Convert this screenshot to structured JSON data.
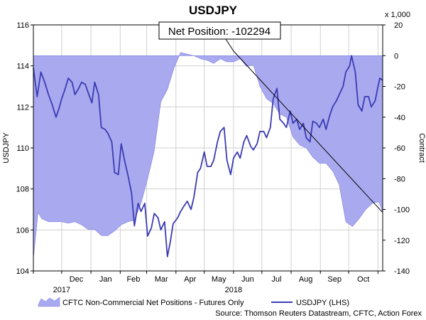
{
  "chart_data": {
    "type": "line",
    "title": "USDJPY",
    "left_axis": {
      "label": "USDJPY",
      "range": [
        104,
        116
      ],
      "ticks": [
        104,
        106,
        108,
        110,
        112,
        114,
        116
      ]
    },
    "right_axis": {
      "label": "Contract",
      "unit": "x 1,000",
      "range": [
        -140,
        20
      ],
      "ticks": [
        -140,
        -120,
        -100,
        -80,
        -60,
        -40,
        -20,
        0,
        20
      ]
    },
    "x_ticks": [
      "Dec",
      "Jan",
      "Feb",
      "Mar",
      "Apr",
      "May",
      "Jun",
      "Jul",
      "Aug",
      "Sep",
      "Oct"
    ],
    "year_labels": [
      {
        "text": "2017",
        "at": "Dec"
      },
      {
        "text": "2018",
        "at": "Jun"
      }
    ],
    "x_domain": [
      "2017-11-01",
      "2018-11-06"
    ],
    "grid": true,
    "annotation": {
      "text": "Net Position: -102294",
      "value": -102294
    },
    "colors": {
      "area_fill": "#a9a9ef",
      "area_edge": "#7f7fdf",
      "line": "#3b3bb3",
      "grid": "#d0d0d0",
      "trend": "#000000"
    },
    "series": [
      {
        "name": "CFTC Non-Commercial Net Positions - Futures Only",
        "axis": "right",
        "kind": "area",
        "points": [
          [
            "2017-11-01",
            -132
          ],
          [
            "2017-11-06",
            -102
          ],
          [
            "2017-11-10",
            -106
          ],
          [
            "2017-11-17",
            -108
          ],
          [
            "2017-11-24",
            -108
          ],
          [
            "2017-12-01",
            -108
          ],
          [
            "2017-12-08",
            -109
          ],
          [
            "2017-12-15",
            -108
          ],
          [
            "2017-12-22",
            -110
          ],
          [
            "2017-12-29",
            -113
          ],
          [
            "2018-01-05",
            -113
          ],
          [
            "2018-01-12",
            -117
          ],
          [
            "2018-01-19",
            -117
          ],
          [
            "2018-01-26",
            -114
          ],
          [
            "2018-02-02",
            -110
          ],
          [
            "2018-02-09",
            -108
          ],
          [
            "2018-02-16",
            -107
          ],
          [
            "2018-02-23",
            -96
          ],
          [
            "2018-03-02",
            -80
          ],
          [
            "2018-03-09",
            -62
          ],
          [
            "2018-03-16",
            -30
          ],
          [
            "2018-03-23",
            -22
          ],
          [
            "2018-03-30",
            -8
          ],
          [
            "2018-04-06",
            2
          ],
          [
            "2018-04-13",
            1
          ],
          [
            "2018-04-20",
            0
          ],
          [
            "2018-04-27",
            -2
          ],
          [
            "2018-05-04",
            -3
          ],
          [
            "2018-05-11",
            -5
          ],
          [
            "2018-05-18",
            -2
          ],
          [
            "2018-05-25",
            -4
          ],
          [
            "2018-06-01",
            -4
          ],
          [
            "2018-06-08",
            -2
          ],
          [
            "2018-06-15",
            -7
          ],
          [
            "2018-06-22",
            -6
          ],
          [
            "2018-06-29",
            -20
          ],
          [
            "2018-07-06",
            -28
          ],
          [
            "2018-07-13",
            -31
          ],
          [
            "2018-07-20",
            -38
          ],
          [
            "2018-07-27",
            -40
          ],
          [
            "2018-08-03",
            -53
          ],
          [
            "2018-08-10",
            -58
          ],
          [
            "2018-08-17",
            -60
          ],
          [
            "2018-08-24",
            -66
          ],
          [
            "2018-08-31",
            -70
          ],
          [
            "2018-09-07",
            -70
          ],
          [
            "2018-09-14",
            -75
          ],
          [
            "2018-09-21",
            -84
          ],
          [
            "2018-09-28",
            -108
          ],
          [
            "2018-10-05",
            -111
          ],
          [
            "2018-10-12",
            -106
          ],
          [
            "2018-10-19",
            -100
          ],
          [
            "2018-10-26",
            -96
          ],
          [
            "2018-11-02",
            -95
          ],
          [
            "2018-11-06",
            -102
          ]
        ]
      },
      {
        "name": "USDJPY (LHS)",
        "axis": "left",
        "kind": "line",
        "points": [
          [
            "2017-11-01",
            113.9
          ],
          [
            "2017-11-05",
            112.5
          ],
          [
            "2017-11-09",
            113.7
          ],
          [
            "2017-11-13",
            113.2
          ],
          [
            "2017-11-17",
            112.6
          ],
          [
            "2017-11-21",
            112.1
          ],
          [
            "2017-11-25",
            111.5
          ],
          [
            "2017-11-28",
            111.9
          ],
          [
            "2017-12-01",
            112.4
          ],
          [
            "2017-12-04",
            112.8
          ],
          [
            "2017-12-08",
            113.4
          ],
          [
            "2017-12-12",
            113.2
          ],
          [
            "2017-12-15",
            112.6
          ],
          [
            "2017-12-19",
            112.9
          ],
          [
            "2017-12-22",
            113.2
          ],
          [
            "2017-12-26",
            113.1
          ],
          [
            "2017-12-29",
            112.7
          ],
          [
            "2018-01-02",
            112.2
          ],
          [
            "2018-01-05",
            113.2
          ],
          [
            "2018-01-09",
            112.6
          ],
          [
            "2018-01-12",
            111.0
          ],
          [
            "2018-01-16",
            110.9
          ],
          [
            "2018-01-19",
            110.7
          ],
          [
            "2018-01-23",
            110.3
          ],
          [
            "2018-01-26",
            108.8
          ],
          [
            "2018-01-30",
            108.7
          ],
          [
            "2018-02-02",
            110.2
          ],
          [
            "2018-02-06",
            109.3
          ],
          [
            "2018-02-09",
            108.7
          ],
          [
            "2018-02-13",
            107.8
          ],
          [
            "2018-02-16",
            106.2
          ],
          [
            "2018-02-20",
            107.3
          ],
          [
            "2018-02-23",
            106.9
          ],
          [
            "2018-02-27",
            107.3
          ],
          [
            "2018-03-02",
            105.7
          ],
          [
            "2018-03-06",
            106.1
          ],
          [
            "2018-03-09",
            106.8
          ],
          [
            "2018-03-13",
            106.6
          ],
          [
            "2018-03-16",
            106.0
          ],
          [
            "2018-03-20",
            106.4
          ],
          [
            "2018-03-23",
            104.7
          ],
          [
            "2018-03-26",
            105.4
          ],
          [
            "2018-03-29",
            106.3
          ],
          [
            "2018-04-03",
            106.6
          ],
          [
            "2018-04-06",
            106.9
          ],
          [
            "2018-04-10",
            107.2
          ],
          [
            "2018-04-13",
            107.4
          ],
          [
            "2018-04-17",
            107.0
          ],
          [
            "2018-04-20",
            107.6
          ],
          [
            "2018-04-24",
            108.8
          ],
          [
            "2018-04-27",
            109.0
          ],
          [
            "2018-05-01",
            109.8
          ],
          [
            "2018-05-04",
            109.1
          ],
          [
            "2018-05-08",
            109.1
          ],
          [
            "2018-05-11",
            109.4
          ],
          [
            "2018-05-15",
            110.3
          ],
          [
            "2018-05-18",
            110.8
          ],
          [
            "2018-05-22",
            111.0
          ],
          [
            "2018-05-25",
            109.4
          ],
          [
            "2018-05-29",
            108.7
          ],
          [
            "2018-06-01",
            109.5
          ],
          [
            "2018-06-05",
            109.8
          ],
          [
            "2018-06-08",
            109.5
          ],
          [
            "2018-06-12",
            110.3
          ],
          [
            "2018-06-15",
            110.6
          ],
          [
            "2018-06-19",
            110.1
          ],
          [
            "2018-06-22",
            109.9
          ],
          [
            "2018-06-26",
            110.2
          ],
          [
            "2018-06-29",
            110.8
          ],
          [
            "2018-07-03",
            110.8
          ],
          [
            "2018-07-06",
            110.5
          ],
          [
            "2018-07-10",
            111.0
          ],
          [
            "2018-07-13",
            112.4
          ],
          [
            "2018-07-17",
            112.9
          ],
          [
            "2018-07-20",
            111.4
          ],
          [
            "2018-07-24",
            111.2
          ],
          [
            "2018-07-27",
            111.0
          ],
          [
            "2018-07-31",
            111.8
          ],
          [
            "2018-08-03",
            111.2
          ],
          [
            "2018-08-07",
            111.4
          ],
          [
            "2018-08-10",
            110.9
          ],
          [
            "2018-08-14",
            111.2
          ],
          [
            "2018-08-17",
            110.5
          ],
          [
            "2018-08-21",
            110.3
          ],
          [
            "2018-08-24",
            111.3
          ],
          [
            "2018-08-28",
            111.2
          ],
          [
            "2018-08-31",
            111.0
          ],
          [
            "2018-09-04",
            111.4
          ],
          [
            "2018-09-07",
            110.9
          ],
          [
            "2018-09-11",
            111.6
          ],
          [
            "2018-09-14",
            112.0
          ],
          [
            "2018-09-18",
            112.3
          ],
          [
            "2018-09-21",
            112.6
          ],
          [
            "2018-09-25",
            113.0
          ],
          [
            "2018-09-28",
            113.7
          ],
          [
            "2018-10-02",
            114.0
          ],
          [
            "2018-10-04",
            114.5
          ],
          [
            "2018-10-08",
            113.7
          ],
          [
            "2018-10-11",
            112.1
          ],
          [
            "2018-10-15",
            111.8
          ],
          [
            "2018-10-18",
            112.5
          ],
          [
            "2018-10-22",
            112.5
          ],
          [
            "2018-10-25",
            112.0
          ],
          [
            "2018-10-29",
            112.3
          ],
          [
            "2018-11-01",
            113.0
          ],
          [
            "2018-11-03",
            113.4
          ],
          [
            "2018-11-06",
            113.3
          ]
        ]
      },
      {
        "name": "",
        "axis": "right",
        "kind": "trend",
        "points": [
          [
            "2018-06-01",
            3
          ],
          [
            "2018-11-06",
            -102
          ]
        ]
      }
    ],
    "source": "Source: Thomson Reuters Datastream, CFTC, Action Forex"
  }
}
